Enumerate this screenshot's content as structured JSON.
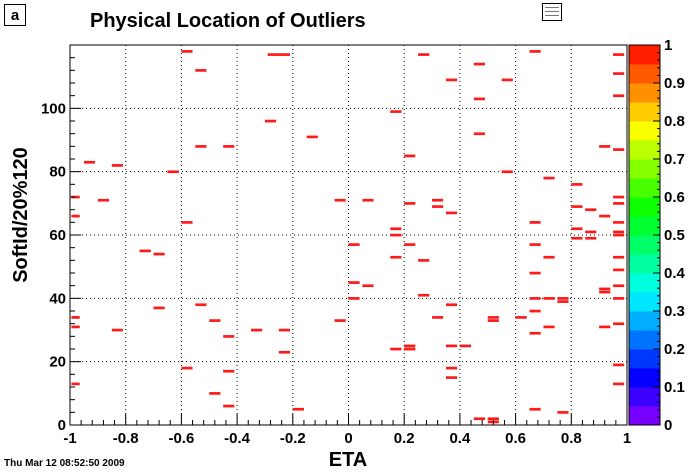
{
  "pad_label": "a",
  "timestamp": "Thu Mar 12 08:52:50 2009",
  "chart_data": {
    "type": "heatmap",
    "title": "Physical Location of Outliers",
    "xlabel": "ETA",
    "ylabel": "SoftId/20%120",
    "xlim": [
      -1,
      1
    ],
    "ylim": [
      0,
      120
    ],
    "grid": true,
    "colorbar_range": [
      0,
      1
    ],
    "colorbar_ticks": [
      "0",
      "0.1",
      "0.2",
      "0.3",
      "0.4",
      "0.5",
      "0.6",
      "0.7",
      "0.8",
      "0.9",
      "1"
    ],
    "x_ticks": [
      "-1",
      "-0.8",
      "-0.6",
      "-0.4",
      "-0.2",
      "0",
      "0.2",
      "0.4",
      "0.6",
      "0.8",
      "1"
    ],
    "y_ticks": [
      "0",
      "20",
      "40",
      "60",
      "80",
      "100"
    ],
    "cells": [
      [
        -0.98,
        72,
        0.03
      ],
      [
        -0.98,
        66,
        0.03
      ],
      [
        -0.98,
        34,
        0.03
      ],
      [
        -0.98,
        31,
        0.03
      ],
      [
        -0.98,
        13,
        0.03
      ],
      [
        -0.93,
        83,
        0.04
      ],
      [
        -0.88,
        71,
        0.04
      ],
      [
        -0.83,
        82,
        0.04
      ],
      [
        -0.83,
        30,
        0.04
      ],
      [
        -0.73,
        55,
        0.04
      ],
      [
        -0.68,
        54,
        0.04
      ],
      [
        -0.68,
        37,
        0.04
      ],
      [
        -0.63,
        80,
        0.04
      ],
      [
        -0.58,
        118,
        0.04
      ],
      [
        -0.58,
        64,
        0.04
      ],
      [
        -0.58,
        18,
        0.04
      ],
      [
        -0.53,
        112,
        0.04
      ],
      [
        -0.53,
        88,
        0.04
      ],
      [
        -0.53,
        38,
        0.04
      ],
      [
        -0.48,
        33,
        0.04
      ],
      [
        -0.48,
        10,
        0.04
      ],
      [
        -0.43,
        88,
        0.04
      ],
      [
        -0.43,
        28,
        0.04
      ],
      [
        -0.43,
        17,
        0.04
      ],
      [
        -0.43,
        6,
        0.04
      ],
      [
        -0.33,
        30,
        0.04
      ],
      [
        -0.28,
        96,
        0.04
      ],
      [
        -0.25,
        117,
        0.08
      ],
      [
        -0.23,
        30,
        0.04
      ],
      [
        -0.23,
        23,
        0.04
      ],
      [
        -0.18,
        5,
        0.04
      ],
      [
        -0.13,
        91,
        0.04
      ],
      [
        -0.03,
        71,
        0.04
      ],
      [
        -0.03,
        33,
        0.04
      ],
      [
        0.02,
        57,
        0.04
      ],
      [
        0.02,
        45,
        0.04
      ],
      [
        0.02,
        40,
        0.04
      ],
      [
        0.07,
        71,
        0.04
      ],
      [
        0.07,
        44,
        0.04
      ],
      [
        0.17,
        99,
        0.04
      ],
      [
        0.17,
        62,
        0.04
      ],
      [
        0.17,
        60,
        0.04
      ],
      [
        0.17,
        53,
        0.04
      ],
      [
        0.17,
        24,
        0.04
      ],
      [
        0.22,
        85,
        0.04
      ],
      [
        0.22,
        70,
        0.04
      ],
      [
        0.22,
        57,
        0.04
      ],
      [
        0.22,
        25,
        0.04
      ],
      [
        0.22,
        24,
        0.04
      ],
      [
        0.27,
        117,
        0.04
      ],
      [
        0.27,
        52,
        0.04
      ],
      [
        0.27,
        41,
        0.04
      ],
      [
        0.32,
        71,
        0.04
      ],
      [
        0.32,
        69,
        0.04
      ],
      [
        0.32,
        34,
        0.04
      ],
      [
        0.37,
        109,
        0.04
      ],
      [
        0.37,
        67,
        0.04
      ],
      [
        0.37,
        38,
        0.04
      ],
      [
        0.37,
        25,
        0.04
      ],
      [
        0.37,
        18,
        0.04
      ],
      [
        0.37,
        15,
        0.04
      ],
      [
        0.42,
        25,
        0.04
      ],
      [
        0.47,
        114,
        0.04
      ],
      [
        0.47,
        103,
        0.04
      ],
      [
        0.47,
        92,
        0.04
      ],
      [
        0.47,
        2,
        0.04
      ],
      [
        0.52,
        2,
        0.04
      ],
      [
        0.52,
        1,
        0.04
      ],
      [
        0.52,
        34,
        0.04
      ],
      [
        0.52,
        33,
        0.04
      ],
      [
        0.57,
        109,
        0.04
      ],
      [
        0.57,
        80,
        0.04
      ],
      [
        0.62,
        34,
        0.04
      ],
      [
        0.67,
        118,
        0.04
      ],
      [
        0.67,
        64,
        0.04
      ],
      [
        0.67,
        57,
        0.04
      ],
      [
        0.67,
        48,
        0.04
      ],
      [
        0.67,
        40,
        0.04
      ],
      [
        0.67,
        36,
        0.04
      ],
      [
        0.67,
        29,
        0.04
      ],
      [
        0.67,
        5,
        0.04
      ],
      [
        0.72,
        78,
        0.04
      ],
      [
        0.72,
        53,
        0.04
      ],
      [
        0.72,
        40,
        0.04
      ],
      [
        0.72,
        31,
        0.04
      ],
      [
        0.77,
        40,
        0.04
      ],
      [
        0.77,
        39,
        0.04
      ],
      [
        0.77,
        4,
        0.04
      ],
      [
        0.82,
        76,
        0.04
      ],
      [
        0.82,
        69,
        0.04
      ],
      [
        0.82,
        62,
        0.04
      ],
      [
        0.82,
        59,
        0.04
      ],
      [
        0.87,
        68,
        0.04
      ],
      [
        0.87,
        61,
        0.04
      ],
      [
        0.87,
        59,
        0.04
      ],
      [
        0.92,
        88,
        0.04
      ],
      [
        0.92,
        66,
        0.04
      ],
      [
        0.92,
        43,
        0.04
      ],
      [
        0.92,
        42,
        0.04
      ],
      [
        0.92,
        31,
        0.04
      ],
      [
        0.97,
        117,
        0.04
      ],
      [
        0.97,
        111,
        0.04
      ],
      [
        0.97,
        104,
        0.04
      ],
      [
        0.97,
        87,
        0.04
      ],
      [
        0.97,
        72,
        0.04
      ],
      [
        0.97,
        70,
        0.04
      ],
      [
        0.97,
        64,
        0.04
      ],
      [
        0.97,
        61,
        0.04
      ],
      [
        0.97,
        60,
        0.04
      ],
      [
        0.97,
        53,
        0.04
      ],
      [
        0.97,
        49,
        0.04
      ],
      [
        0.97,
        44,
        0.04
      ],
      [
        0.97,
        40,
        0.04
      ],
      [
        0.97,
        32,
        0.04
      ],
      [
        0.97,
        19,
        0.04
      ],
      [
        0.97,
        13,
        0.04
      ]
    ]
  }
}
